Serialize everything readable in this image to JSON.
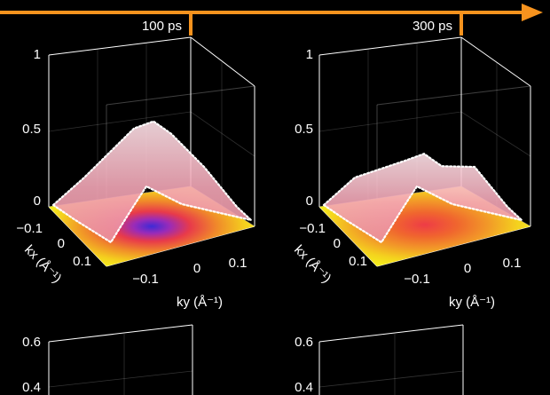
{
  "colors": {
    "background": "#000000",
    "timeline": "#f7931e",
    "axes": "#ffffff",
    "surface_low": "#f5ec1a",
    "surface_mid": "#f08a2a",
    "surface_high": "#4a2cd8",
    "mesh": "#f4a6b4"
  },
  "timeline": {
    "marker_1": "100 ps",
    "marker_2": "300 ps"
  },
  "chart_data": [
    {
      "type": "surface",
      "panel": "top-left",
      "timestamp": "100 ps",
      "zlim": [
        0,
        1
      ],
      "z_ticks": [
        "1",
        "0.5",
        "0"
      ],
      "kx_ticks": [
        "−0.1",
        "0",
        "0.1"
      ],
      "ky_ticks": [
        "−0.1",
        "0",
        "0.1"
      ],
      "kx_label": "kx (Å⁻¹)",
      "ky_label": "ky (Å⁻¹)",
      "peak_height": 0.55
    },
    {
      "type": "surface",
      "panel": "top-right",
      "timestamp": "300 ps",
      "zlim": [
        0,
        1
      ],
      "z_ticks": [
        "1",
        "0.5",
        "0"
      ],
      "kx_ticks": [
        "−0.1",
        "0",
        "0.1"
      ],
      "ky_ticks": [
        "−0.1",
        "0",
        "0.1"
      ],
      "kx_label": "kx (Å⁻¹)",
      "ky_label": "ky (Å⁻¹)",
      "peak_height": 0.33
    },
    {
      "type": "surface",
      "panel": "bottom-left",
      "z_ticks": [
        "0.6",
        "0.4"
      ]
    },
    {
      "type": "surface",
      "panel": "bottom-right",
      "z_ticks": [
        "0.6",
        "0.4"
      ]
    }
  ]
}
